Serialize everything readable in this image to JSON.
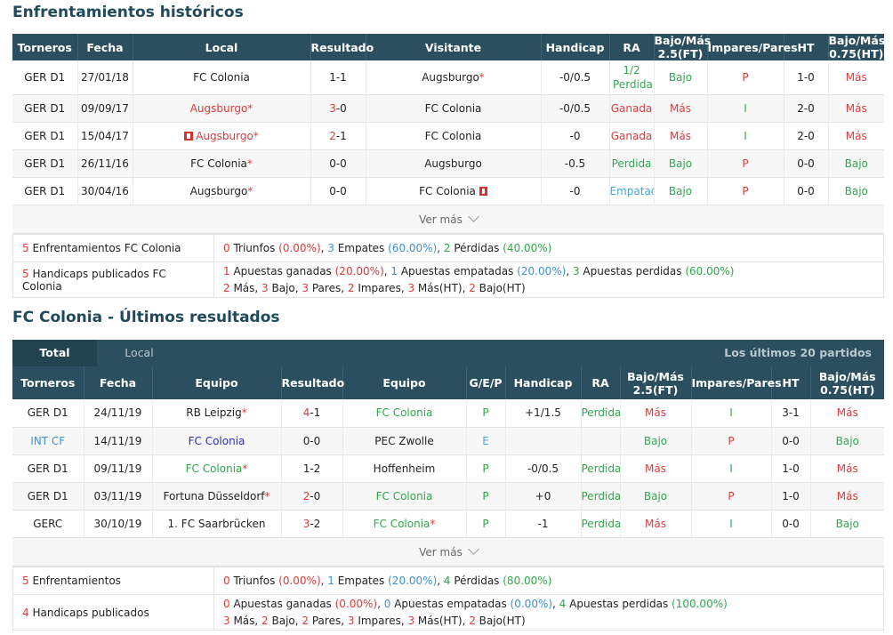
{
  "section1": {
    "title": "Enfrentamientos históricos",
    "headers": [
      "Torneros",
      "Fecha",
      "Local",
      "Resultado",
      "Visitante",
      "Handicap",
      "RA",
      "Bajo/Más 2.5(FT)",
      "Impares/Pares",
      "HT",
      "Bajo/Más 0.75(HT)"
    ],
    "rows": [
      {
        "league": "GER D1",
        "date": "27/01/18",
        "home": "FC Colonia",
        "home_star": "",
        "home_cls": "",
        "score_a": "1",
        "score_b": "-1",
        "score_cls": "",
        "away": "Augsburgo",
        "away_star": "*",
        "away_cls": "",
        "hcp": "-0/0.5",
        "ra": "1/2 Perdida",
        "ra_cls": "green",
        "ou": "Bajo",
        "ou_cls": "green",
        "oe": "P",
        "oe_cls": "red",
        "ht": "1-0",
        "ou2": "Más",
        "ou2_cls": "red"
      },
      {
        "league": "GER D1",
        "date": "09/09/17",
        "home": "Augsburgo",
        "home_star": "*",
        "home_cls": "red",
        "score_a": "3",
        "score_b": "-0",
        "score_cls": "red",
        "away": "FC Colonia",
        "away_star": "",
        "away_cls": "",
        "hcp": "-0/0.5",
        "ra": "Ganada",
        "ra_cls": "red",
        "ou": "Más",
        "ou_cls": "red",
        "oe": "I",
        "oe_cls": "green",
        "ht": "2-0",
        "ou2": "Más",
        "ou2_cls": "red"
      },
      {
        "league": "GER D1",
        "date": "15/04/17",
        "home": "Augsburgo",
        "home_star": "*",
        "home_cls": "red",
        "score_a": "2",
        "score_b": "-1",
        "score_cls": "red",
        "away": "FC Colonia",
        "away_star": "",
        "away_cls": "",
        "hcp": "-0",
        "ra": "Ganada",
        "ra_cls": "red",
        "ou": "Más",
        "ou_cls": "red",
        "oe": "I",
        "oe_cls": "green",
        "ht": "2-0",
        "ou2": "Más",
        "ou2_cls": "red"
      },
      {
        "league": "GER D1",
        "date": "26/11/16",
        "home": "FC Colonia",
        "home_star": "*",
        "home_cls": "",
        "score_a": "0",
        "score_b": "-0",
        "score_cls": "",
        "away": "Augsburgo",
        "away_star": "",
        "away_cls": "",
        "hcp": "-0.5",
        "ra": "Perdida",
        "ra_cls": "green",
        "ou": "Bajo",
        "ou_cls": "green",
        "oe": "P",
        "oe_cls": "red",
        "ht": "0-0",
        "ou2": "Bajo",
        "ou2_cls": "green"
      },
      {
        "league": "GER D1",
        "date": "30/04/16",
        "home": "Augsburgo",
        "home_star": "*",
        "home_cls": "",
        "score_a": "0",
        "score_b": "-0",
        "score_cls": "",
        "away": "FC Colonia",
        "away_star": "",
        "away_cls": "",
        "hcp": "-0",
        "ra": "Empatada",
        "ra_cls": "lightblue",
        "ou": "Bajo",
        "ou_cls": "green",
        "oe": "P",
        "oe_cls": "red",
        "ht": "0-0",
        "ou2": "Bajo",
        "ou2_cls": "green"
      }
    ],
    "ver_mas": "Ver más",
    "summary": {
      "count1": "5",
      "label1": "Enfrentamientos FC Colonia",
      "w": "0",
      "w_txt": " Triunfos ",
      "w_pct": "(0.00%)",
      "d": "3",
      "d_txt": " Empates ",
      "d_pct": "(60.00%)",
      "l": "2",
      "l_txt": " Pérdidas ",
      "l_pct": "(40.00%)",
      "count2": "5",
      "label2": "Handicaps publicados FC Colonia",
      "hw": "1",
      "hw_txt": " Apuestas ganadas ",
      "hw_pct": "(20.00%)",
      "hd": "1",
      "hd_txt": " Apuestas empatadas ",
      "hd_pct": "(20.00%)",
      "hl": "3",
      "hl_txt": " Apuestas perdidas ",
      "hl_pct": "(60.00%)",
      "m": "2",
      "m_txt": " Más, ",
      "b": "3",
      "b_txt": " Bajo, ",
      "p": "3",
      "p_txt": " Pares, ",
      "i": "2",
      "i_txt": " Impares, ",
      "mht": "3",
      "mht_txt": " Más(HT), ",
      "bht": "2",
      "bht_txt": " Bajo(HT)"
    }
  },
  "section2": {
    "title": "FC Colonia - Últimos resultados",
    "tabs": {
      "total": "Total",
      "local": "Local",
      "right": "Los últimos 20 partidos"
    },
    "headers": [
      "Torneros",
      "Fecha",
      "Equipo",
      "Resultado",
      "Equipo",
      "G/E/P",
      "Handicap",
      "RA",
      "Bajo/Más 2.5(FT)",
      "Impares/Pares",
      "HT",
      "Bajo/Más 0.75(HT)"
    ],
    "rows": [
      {
        "league": "GER D1",
        "league_cls": "",
        "date": "24/11/19",
        "home": "RB Leipzig",
        "home_star": "*",
        "home_cls": "",
        "score_a": "4",
        "score_b": "-1",
        "score_cls": "red",
        "away": "FC Colonia",
        "away_star": "",
        "away_cls": "green",
        "gep": "P",
        "gep_cls": "green",
        "hcp": "+1/1.5",
        "ra": "Perdida",
        "ra_cls": "green",
        "ou": "Más",
        "ou_cls": "red",
        "oe": "I",
        "oe_cls": "green",
        "ht": "3-1",
        "ou2": "Más",
        "ou2_cls": "red"
      },
      {
        "league": "INT CF",
        "league_cls": "blue",
        "date": "14/11/19",
        "home": "FC Colonia",
        "home_star": "",
        "home_cls": "navy",
        "score_a": "0",
        "score_b": "-0",
        "score_cls": "",
        "away": "PEC Zwolle",
        "away_star": "",
        "away_cls": "",
        "gep": "E",
        "gep_cls": "lightblue",
        "hcp": "",
        "ra": "",
        "ra_cls": "",
        "ou": "Bajo",
        "ou_cls": "green",
        "oe": "P",
        "oe_cls": "red",
        "ht": "0-0",
        "ou2": "Bajo",
        "ou2_cls": "green"
      },
      {
        "league": "GER D1",
        "league_cls": "",
        "date": "09/11/19",
        "home": "FC Colonia",
        "home_star": "*",
        "home_cls": "green",
        "score_a": "1",
        "score_b": "-2",
        "score_cls": "",
        "away": "Hoffenheim",
        "away_star": "",
        "away_cls": "",
        "gep": "P",
        "gep_cls": "green",
        "hcp": "-0/0.5",
        "ra": "Perdida",
        "ra_cls": "green",
        "ou": "Más",
        "ou_cls": "red",
        "oe": "I",
        "oe_cls": "green",
        "ht": "1-0",
        "ou2": "Más",
        "ou2_cls": "red"
      },
      {
        "league": "GER D1",
        "league_cls": "",
        "date": "03/11/19",
        "home": "Fortuna Düsseldorf",
        "home_star": "*",
        "home_cls": "",
        "score_a": "2",
        "score_b": "-0",
        "score_cls": "red",
        "away": "FC Colonia",
        "away_star": "",
        "away_cls": "green",
        "gep": "P",
        "gep_cls": "green",
        "hcp": "+0",
        "ra": "Perdida",
        "ra_cls": "green",
        "ou": "Bajo",
        "ou_cls": "green",
        "oe": "P",
        "oe_cls": "red",
        "ht": "1-0",
        "ou2": "Más",
        "ou2_cls": "red"
      },
      {
        "league": "GERC",
        "league_cls": "",
        "date": "30/10/19",
        "home": "1. FC Saarbrücken",
        "home_star": "",
        "home_cls": "",
        "score_a": "3",
        "score_b": "-2",
        "score_cls": "red",
        "away": "FC Colonia",
        "away_star": "*",
        "away_cls": "green",
        "gep": "P",
        "gep_cls": "green",
        "hcp": "-1",
        "ra": "Perdida",
        "ra_cls": "green",
        "ou": "Más",
        "ou_cls": "red",
        "oe": "I",
        "oe_cls": "green",
        "ht": "0-0",
        "ou2": "Bajo",
        "ou2_cls": "green"
      }
    ],
    "ver_mas": "Ver más",
    "summary": {
      "count1": "5",
      "label1": "Enfrentamientos",
      "w": "0",
      "w_txt": " Triunfos ",
      "w_pct": "(0.00%)",
      "d": "1",
      "d_txt": " Empates ",
      "d_pct": "(20.00%)",
      "l": "4",
      "l_txt": " Pérdidas ",
      "l_pct": "(80.00%)",
      "count2": "4",
      "label2": "Handicaps publicados",
      "hw": "0",
      "hw_txt": " Apuestas ganadas ",
      "hw_pct": "(0.00%)",
      "hd": "0",
      "hd_txt": " Apuestas empatadas ",
      "hd_pct": "(0.00%)",
      "hl": "4",
      "hl_txt": " Apuestas perdidas ",
      "hl_pct": "(100.00%)",
      "m": "3",
      "m_txt": " Más, ",
      "b": "2",
      "b_txt": " Bajo, ",
      "p": "2",
      "p_txt": " Pares, ",
      "i": "3",
      "i_txt": " Impares, ",
      "mht": "3",
      "mht_txt": " Más(HT), ",
      "bht": "2",
      "bht_txt": " Bajo(HT)"
    }
  }
}
